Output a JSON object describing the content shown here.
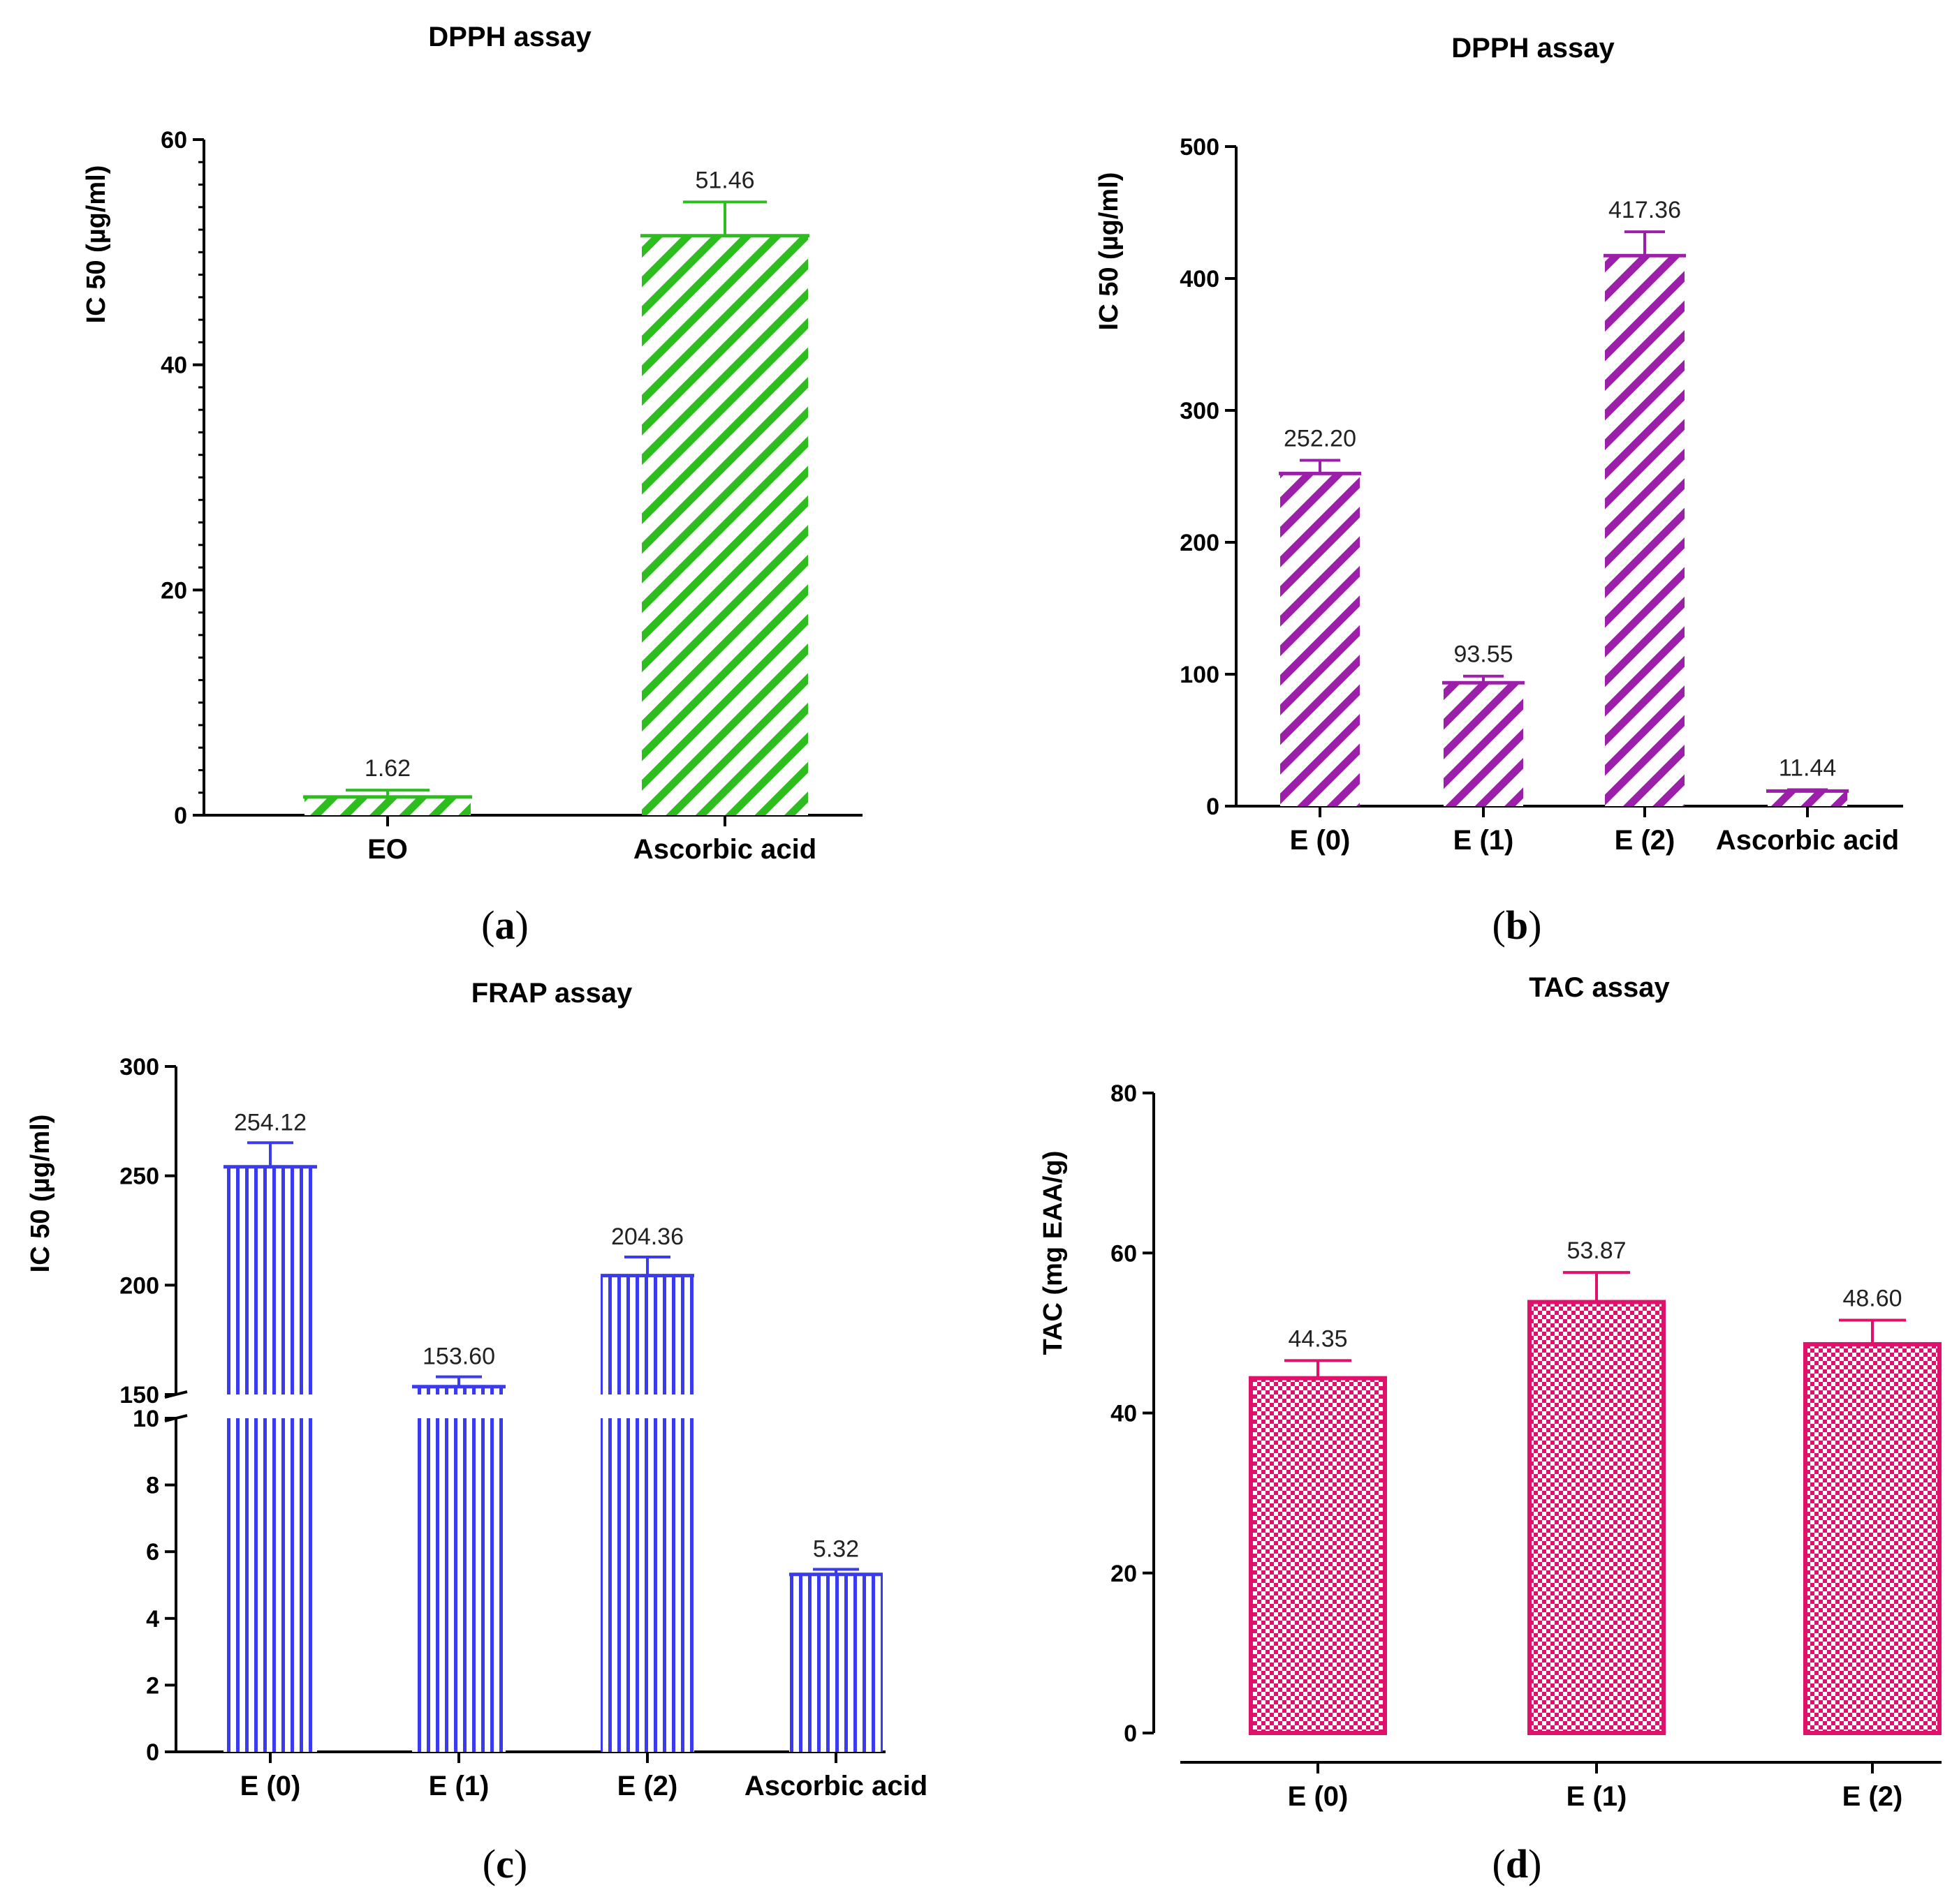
{
  "chart_data": [
    {
      "type": "bar",
      "title": "DPPH assay",
      "ylabel": "IC 50 (µg/ml)",
      "categories": [
        "EO",
        "Ascorbic acid"
      ],
      "values": [
        1.62,
        51.46
      ],
      "error": [
        0.6,
        3.0
      ],
      "data_labels": [
        "1.62",
        "51.46"
      ],
      "ylim": [
        0,
        60
      ],
      "yticks": [
        "0",
        "20",
        "40",
        "60"
      ],
      "color": "#2dbd1e",
      "pattern": "diagonal-stripes",
      "panel_label": "a"
    },
    {
      "type": "bar",
      "title": "DPPH assay",
      "ylabel": "IC 50 (µg/ml)",
      "categories": [
        "E (0)",
        "E (1)",
        "E (2)",
        "Ascorbic acid"
      ],
      "values": [
        252.2,
        93.55,
        417.36,
        11.44
      ],
      "error": [
        10,
        5,
        18,
        1
      ],
      "data_labels": [
        "252.20",
        "93.55",
        "417.36",
        "11.44"
      ],
      "ylim": [
        0,
        500
      ],
      "yticks": [
        "0",
        "100",
        "200",
        "300",
        "400",
        "500"
      ],
      "color": "#9b1fa8",
      "pattern": "diagonal-stripes",
      "panel_label": "b"
    },
    {
      "type": "bar",
      "title": "FRAP assay",
      "ylabel": "IC 50 (µg/ml)",
      "categories": [
        "E (0)",
        "E (1)",
        "E (2)",
        "Ascorbic acid"
      ],
      "values": [
        254.12,
        153.6,
        204.36,
        5.32
      ],
      "error": [
        11,
        4.5,
        8.5,
        0.15
      ],
      "data_labels": [
        "254.12",
        "153.60",
        "204.36",
        "5.32"
      ],
      "axis_break": {
        "lower": [
          0,
          10
        ],
        "upper": [
          150,
          300
        ]
      },
      "yticks_lower": [
        "0",
        "2",
        "4",
        "6",
        "8",
        "10"
      ],
      "yticks_upper": [
        "150",
        "200",
        "250",
        "300"
      ],
      "color": "#3a3af0",
      "pattern": "vertical-stripes",
      "panel_label": "c"
    },
    {
      "type": "bar",
      "title": "TAC assay",
      "ylabel": "TAC (mg EAA/g)",
      "categories": [
        "E (0)",
        "E (1)",
        "E (2)"
      ],
      "values": [
        44.35,
        53.87,
        48.6
      ],
      "error": [
        2.2,
        3.7,
        3.0
      ],
      "data_labels": [
        "44.35",
        "53.87",
        "48.60"
      ],
      "ylim": [
        0,
        80
      ],
      "yticks": [
        "0",
        "20",
        "40",
        "60",
        "80"
      ],
      "color": "#e0116a",
      "pattern": "checkerboard",
      "panel_label": "d"
    }
  ]
}
